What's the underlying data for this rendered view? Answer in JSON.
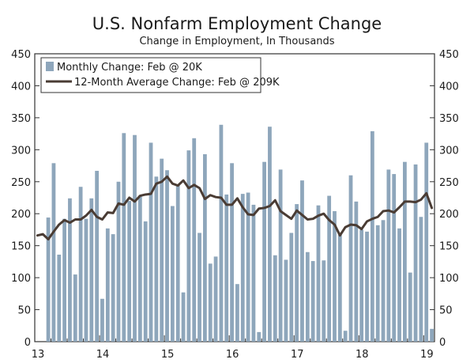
{
  "chart_data": {
    "type": "bar+line",
    "title": "U.S. Nonfarm Employment Change",
    "subtitle": "Change in Employment, In Thousands",
    "ylim": [
      0,
      450
    ],
    "y_ticks": [
      0,
      50,
      100,
      150,
      200,
      250,
      300,
      350,
      400,
      450
    ],
    "x_tick_labels": [
      "13",
      "14",
      "15",
      "16",
      "17",
      "18",
      "19"
    ],
    "x_tick_month_index": [
      0,
      12,
      24,
      36,
      48,
      60,
      72
    ],
    "months": [
      "2013-01",
      "2013-02",
      "2013-03",
      "2013-04",
      "2013-05",
      "2013-06",
      "2013-07",
      "2013-08",
      "2013-09",
      "2013-10",
      "2013-11",
      "2013-12",
      "2014-01",
      "2014-02",
      "2014-03",
      "2014-04",
      "2014-05",
      "2014-06",
      "2014-07",
      "2014-08",
      "2014-09",
      "2014-10",
      "2014-11",
      "2014-12",
      "2015-01",
      "2015-02",
      "2015-03",
      "2015-04",
      "2015-05",
      "2015-06",
      "2015-07",
      "2015-08",
      "2015-09",
      "2015-10",
      "2015-11",
      "2015-12",
      "2016-01",
      "2016-02",
      "2016-03",
      "2016-04",
      "2016-05",
      "2016-06",
      "2016-07",
      "2016-08",
      "2016-09",
      "2016-10",
      "2016-11",
      "2016-12",
      "2017-01",
      "2017-02",
      "2017-03",
      "2017-04",
      "2017-05",
      "2017-06",
      "2017-07",
      "2017-08",
      "2017-09",
      "2017-10",
      "2017-11",
      "2017-12",
      "2018-01",
      "2018-02",
      "2018-03",
      "2018-04",
      "2018-05",
      "2018-06",
      "2018-07",
      "2018-08",
      "2018-09",
      "2018-10",
      "2018-11",
      "2018-12",
      "2019-01",
      "2019-02"
    ],
    "series": [
      {
        "name": "Monthly Change: Feb @ 20K",
        "type": "bar",
        "color": "#8ea6bb",
        "values": [
          194,
          279,
          136,
          192,
          224,
          105,
          242,
          192,
          224,
          267,
          67,
          177,
          168,
          250,
          326,
          220,
          323,
          228,
          188,
          311,
          258,
          286,
          268,
          212,
          246,
          77,
          299,
          318,
          170,
          293,
          122,
          133,
          339,
          230,
          279,
          90,
          231,
          233,
          214,
          15,
          281,
          336,
          135,
          269,
          128,
          170,
          215,
          252,
          140,
          126,
          213,
          127,
          228,
          204,
          167,
          17,
          260,
          219,
          175,
          172,
          329,
          182,
          190,
          269,
          262,
          177,
          281,
          108,
          277,
          195,
          311,
          20
        ],
        "values_note": "bars aligned to the last 72 months (2013-03 through 2019-02)"
      },
      {
        "name": "12-Month Average Change: Feb @ 209K",
        "type": "line",
        "color": "#4a3c34",
        "values": [
          166,
          168,
          160,
          172,
          183,
          190,
          186,
          191,
          191,
          197,
          206,
          195,
          191,
          202,
          201,
          216,
          214,
          225,
          219,
          228,
          230,
          231,
          247,
          250,
          258,
          247,
          244,
          252,
          240,
          245,
          240,
          223,
          229,
          226,
          225,
          214,
          214,
          224,
          210,
          199,
          198,
          208,
          209,
          212,
          221,
          204,
          198,
          192,
          205,
          198,
          191,
          192,
          197,
          200,
          190,
          183,
          166,
          179,
          183,
          182,
          176,
          188,
          192,
          195,
          204,
          205,
          202,
          210,
          219,
          219,
          218,
          222,
          232,
          209
        ]
      }
    ],
    "legend": {
      "placement": "top-left",
      "entries": [
        "Monthly Change: Feb @ 20K",
        "12-Month Average Change: Feb @ 209K"
      ]
    }
  }
}
